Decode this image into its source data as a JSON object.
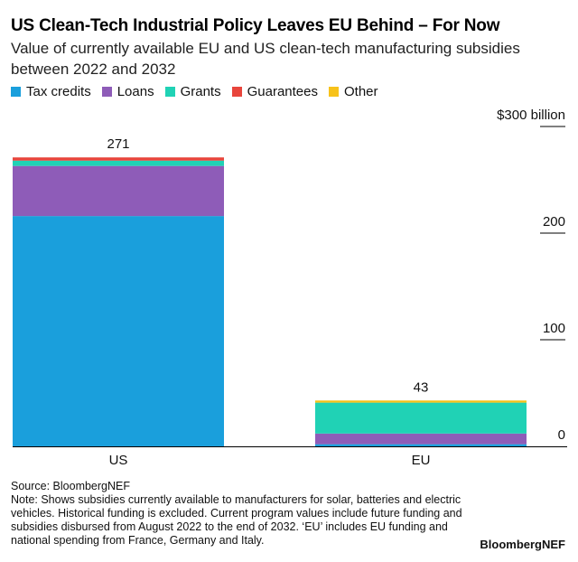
{
  "title": "US Clean-Tech Industrial Policy Leaves EU Behind – For Now",
  "subtitle": "Value of currently available EU and US clean-tech manufacturing subsidies between 2022 and 2032",
  "legend": [
    {
      "label": "Tax credits",
      "color": "#1a9fdc"
    },
    {
      "label": "Loans",
      "color": "#8e5cb8"
    },
    {
      "label": "Grants",
      "color": "#20d2b5"
    },
    {
      "label": "Guarantees",
      "color": "#e8453c"
    },
    {
      "label": "Other",
      "color": "#f7c21a"
    }
  ],
  "chart_data": {
    "type": "bar",
    "stacked": true,
    "categories": [
      "US",
      "EU"
    ],
    "series": [
      {
        "name": "Tax credits",
        "color": "#1a9fdc",
        "values": [
          216,
          2
        ]
      },
      {
        "name": "Loans",
        "color": "#8e5cb8",
        "values": [
          47,
          10
        ]
      },
      {
        "name": "Grants",
        "color": "#20d2b5",
        "values": [
          5,
          29
        ]
      },
      {
        "name": "Guarantees",
        "color": "#e8453c",
        "values": [
          3,
          0
        ]
      },
      {
        "name": "Other",
        "color": "#f7c21a",
        "values": [
          0,
          2
        ]
      }
    ],
    "totals": [
      271,
      43
    ],
    "total_labels": [
      "271",
      "43"
    ],
    "ylim": [
      0,
      300
    ],
    "yticks": [
      0,
      100,
      200,
      300
    ],
    "ytick_labels": [
      "0",
      "100",
      "200",
      "$300 billion"
    ],
    "axis_position": "right"
  },
  "footer": {
    "source": "Source: BloombergNEF",
    "note": "Note: Shows subsidies currently available to manufacturers for solar, batteries and electric vehicles. Historical funding is excluded. Current program values include future funding and subsidies disbursed from August 2022 to the end of 2032. ‘EU’ includes EU funding and national spending from France, Germany and Italy."
  },
  "brand": "BloombergNEF"
}
